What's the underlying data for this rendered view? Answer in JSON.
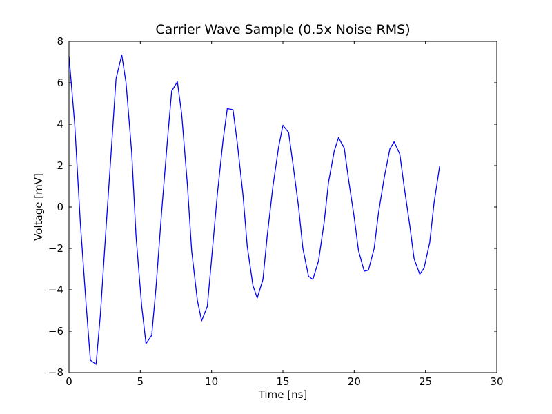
{
  "chart_data": {
    "type": "line",
    "title": "Carrier Wave Sample (0.5x Noise RMS)",
    "xlabel": "Time [ns]",
    "ylabel": "Voltage [mV]",
    "xlim": [
      0,
      30
    ],
    "ylim": [
      -8,
      8
    ],
    "xticks": [
      0,
      5,
      10,
      15,
      20,
      25,
      30
    ],
    "yticks": [
      -8,
      -6,
      -4,
      -2,
      0,
      2,
      4,
      6,
      8
    ],
    "xtick_labels": [
      "0",
      "5",
      "10",
      "15",
      "20",
      "25",
      "30"
    ],
    "ytick_labels": [
      "−8",
      "−6",
      "−4",
      "−2",
      "0",
      "2",
      "4",
      "6",
      "8"
    ],
    "grid": false,
    "series": [
      {
        "color": "#0000ff",
        "x": [
          0.0,
          0.4,
          0.8,
          1.2,
          1.5,
          1.9,
          2.2,
          2.6,
          3.0,
          3.3,
          3.7,
          4.0,
          4.4,
          4.7,
          5.1,
          5.4,
          5.8,
          6.1,
          6.5,
          6.9,
          7.2,
          7.6,
          7.9,
          8.3,
          8.6,
          9.0,
          9.3,
          9.7,
          10.0,
          10.4,
          10.8,
          11.1,
          11.5,
          11.8,
          12.2,
          12.5,
          12.9,
          13.2,
          13.6,
          13.9,
          14.3,
          14.7,
          15.0,
          15.4,
          15.7,
          16.1,
          16.4,
          16.8,
          17.1,
          17.5,
          17.9,
          18.2,
          18.6,
          18.9,
          19.3,
          19.6,
          20.0,
          20.3,
          20.7,
          21.0,
          21.4,
          21.7,
          22.1,
          22.5,
          22.8,
          23.2,
          23.5,
          23.9,
          24.2,
          24.6,
          24.9,
          25.3,
          25.6,
          26.0
        ],
        "y": [
          7.3,
          4.0,
          -0.8,
          -4.7,
          -7.4,
          -7.6,
          -5.2,
          -1.0,
          3.1,
          6.2,
          7.35,
          6.0,
          2.6,
          -1.4,
          -4.8,
          -6.6,
          -6.2,
          -3.9,
          -0.2,
          3.2,
          5.6,
          6.05,
          4.5,
          1.1,
          -2.1,
          -4.5,
          -5.5,
          -4.8,
          -2.5,
          0.6,
          3.2,
          4.75,
          4.7,
          3.1,
          0.6,
          -1.9,
          -3.8,
          -4.4,
          -3.5,
          -1.4,
          1.0,
          2.9,
          3.95,
          3.6,
          2.1,
          0.0,
          -2.0,
          -3.35,
          -3.5,
          -2.6,
          -0.7,
          1.2,
          2.7,
          3.35,
          2.85,
          1.35,
          -0.5,
          -2.1,
          -3.1,
          -3.05,
          -2.0,
          -0.3,
          1.4,
          2.8,
          3.15,
          2.55,
          1.0,
          -0.9,
          -2.5,
          -3.25,
          -2.95,
          -1.7,
          0.2,
          2.0
        ]
      }
    ]
  }
}
